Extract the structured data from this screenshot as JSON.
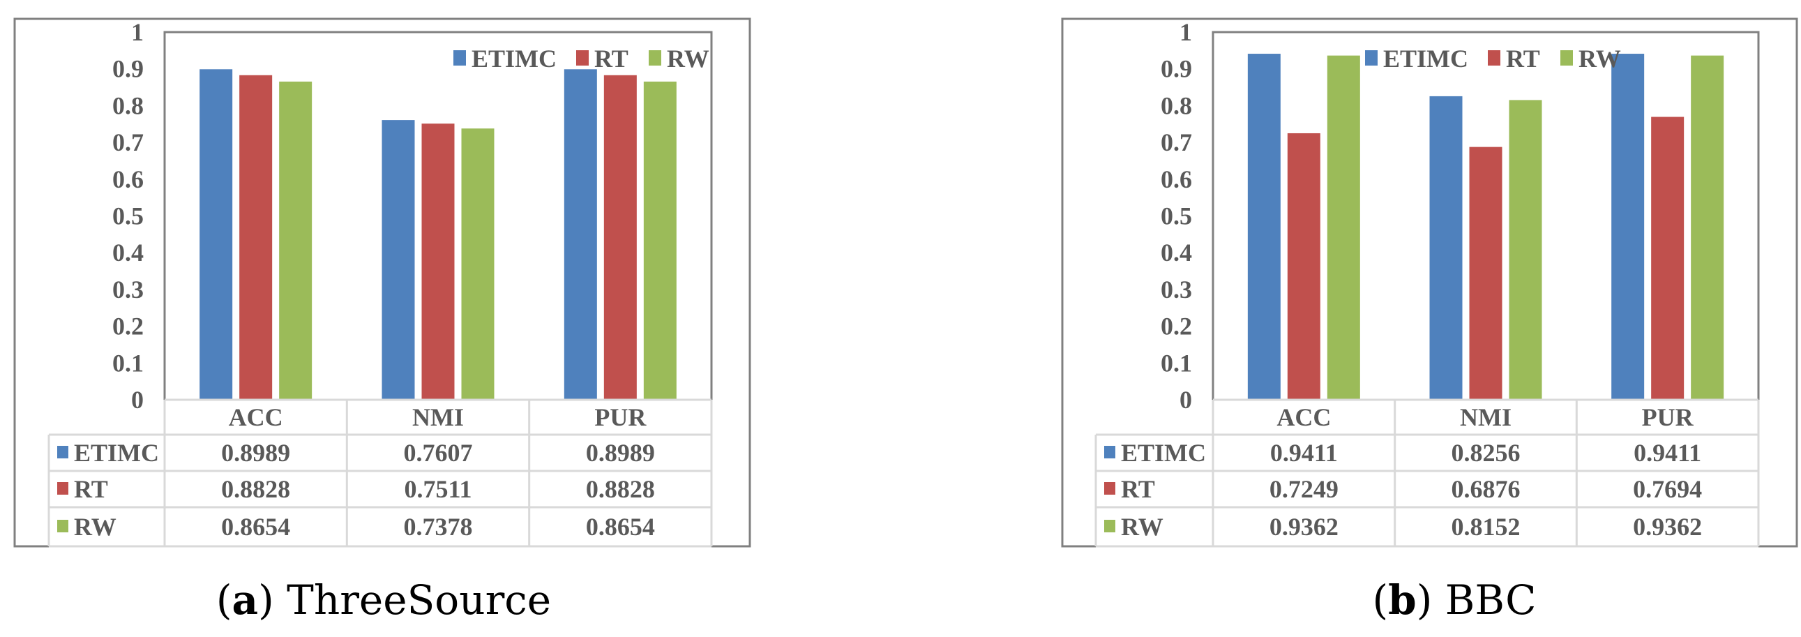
{
  "colors": {
    "ETIMC": "#4f81bd",
    "RT": "#c0504d",
    "RW": "#9bbb59",
    "frame": "#808080",
    "grid": "#d9d9d9"
  },
  "chart_data": [
    {
      "type": "bar",
      "caption_label": "a",
      "caption_text": "ThreeSource",
      "categories": [
        "ACC",
        "NMI",
        "PUR"
      ],
      "series": [
        {
          "name": "ETIMC",
          "values": [
            0.8989,
            0.7607,
            0.8989
          ],
          "labels": [
            "0.8989",
            "0.7607",
            "0.8989"
          ]
        },
        {
          "name": "RT",
          "values": [
            0.8828,
            0.7511,
            0.8828
          ],
          "labels": [
            "0.8828",
            "0.7511",
            "0.8828"
          ]
        },
        {
          "name": "RW",
          "values": [
            0.8654,
            0.7378,
            0.8654
          ],
          "labels": [
            "0.8654",
            "0.7378",
            "0.8654"
          ]
        }
      ],
      "ylim": [
        0,
        1
      ],
      "yticks": [
        "0",
        "0.1",
        "0.2",
        "0.3",
        "0.4",
        "0.5",
        "0.6",
        "0.7",
        "0.8",
        "0.9",
        "1"
      ],
      "legend": "top-right",
      "grid": false,
      "data_table": true
    },
    {
      "type": "bar",
      "caption_label": "b",
      "caption_text": "BBC",
      "categories": [
        "ACC",
        "NMI",
        "PUR"
      ],
      "series": [
        {
          "name": "ETIMC",
          "values": [
            0.9411,
            0.8256,
            0.9411
          ],
          "labels": [
            "0.9411",
            "0.8256",
            "0.9411"
          ]
        },
        {
          "name": "RT",
          "values": [
            0.7249,
            0.6876,
            0.7694
          ],
          "labels": [
            "0.7249",
            "0.6876",
            "0.7694"
          ]
        },
        {
          "name": "RW",
          "values": [
            0.9362,
            0.8152,
            0.9362
          ],
          "labels": [
            "0.9362",
            "0.8152",
            "0.9362"
          ]
        }
      ],
      "ylim": [
        0,
        1
      ],
      "yticks": [
        "0",
        "0.1",
        "0.2",
        "0.3",
        "0.4",
        "0.5",
        "0.6",
        "0.7",
        "0.8",
        "0.9",
        "1"
      ],
      "legend": "top-center",
      "grid": false,
      "data_table": true
    }
  ]
}
